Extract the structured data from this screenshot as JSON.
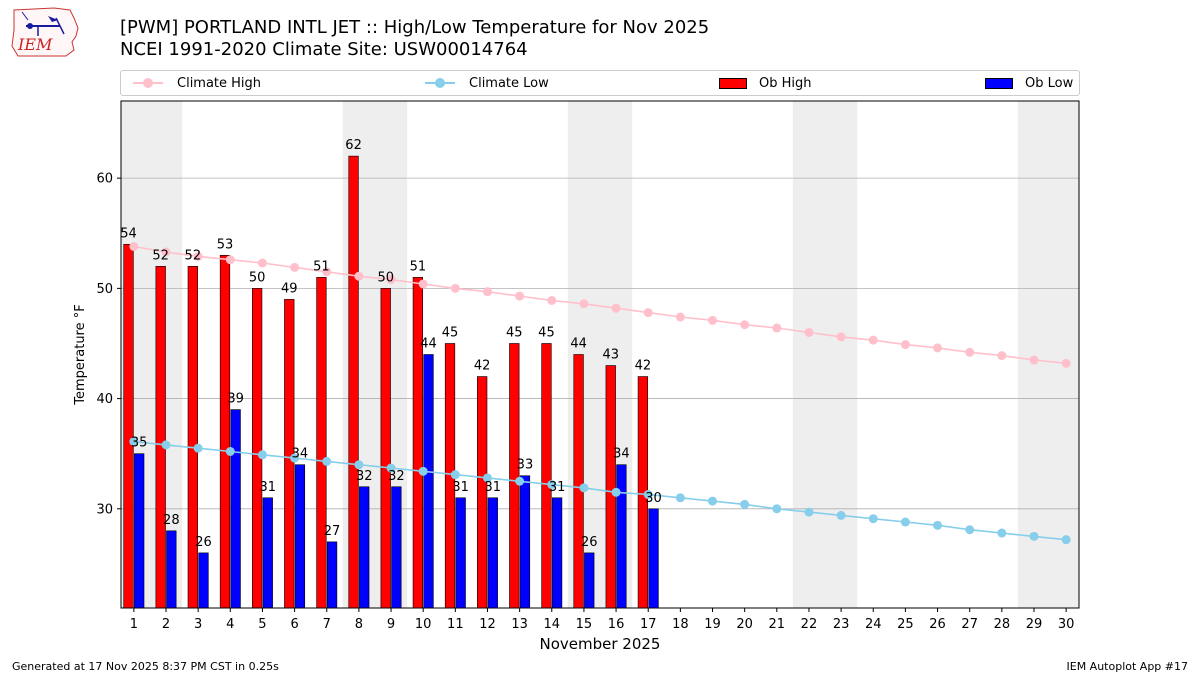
{
  "logo": {
    "text": "IEM"
  },
  "title": {
    "line1": "[PWM] PORTLAND INTL JET :: High/Low Temperature for Nov 2025",
    "line2": "NCEI 1991-2020 Climate Site: USW00014764"
  },
  "legend": {
    "climate_high": "Climate High",
    "climate_low": "Climate Low",
    "ob_high": "Ob High",
    "ob_low": "Ob Low"
  },
  "colors": {
    "climate_high": "#ffc0cb",
    "climate_low": "#87ceeb",
    "ob_high": "#ff0000",
    "ob_low": "#0000ff",
    "weekend_shade": "#eeeeee",
    "grid": "#b0b0b0"
  },
  "footer": {
    "left": "Generated at 17 Nov 2025 8:37 PM CST in 0.25s",
    "right": "IEM Autoplot App #17"
  },
  "chart_data": {
    "type": "bar",
    "xlabel": "November 2025",
    "ylabel": "Temperature °F",
    "ylim": [
      21,
      67
    ],
    "yticks": [
      30,
      40,
      50,
      60
    ],
    "days": [
      1,
      2,
      3,
      4,
      5,
      6,
      7,
      8,
      9,
      10,
      11,
      12,
      13,
      14,
      15,
      16,
      17,
      18,
      19,
      20,
      21,
      22,
      23,
      24,
      25,
      26,
      27,
      28,
      29,
      30
    ],
    "weekend_shading": [
      [
        1,
        2
      ],
      [
        8,
        9
      ],
      [
        15,
        16
      ],
      [
        22,
        23
      ],
      [
        29,
        30
      ]
    ],
    "grid": true,
    "legend_position": "top",
    "series": [
      {
        "name": "Ob High",
        "type": "bar",
        "values": [
          54,
          52,
          52,
          53,
          50,
          49,
          51,
          62,
          50,
          51,
          45,
          42,
          45,
          45,
          44,
          43,
          42
        ]
      },
      {
        "name": "Ob Low",
        "type": "bar",
        "values": [
          35,
          28,
          26,
          39,
          31,
          34,
          27,
          32,
          32,
          44,
          31,
          31,
          33,
          31,
          26,
          34,
          30
        ]
      },
      {
        "name": "Climate High",
        "type": "line",
        "values": [
          53.8,
          53.3,
          52.9,
          52.6,
          52.3,
          51.9,
          51.5,
          51.1,
          50.8,
          50.4,
          50.0,
          49.7,
          49.3,
          48.9,
          48.6,
          48.2,
          47.8,
          47.4,
          47.1,
          46.7,
          46.4,
          46.0,
          45.6,
          45.3,
          44.9,
          44.6,
          44.2,
          43.9,
          43.5,
          43.2
        ]
      },
      {
        "name": "Climate Low",
        "type": "line",
        "values": [
          36.1,
          35.8,
          35.5,
          35.2,
          34.9,
          34.6,
          34.3,
          34.0,
          33.7,
          33.4,
          33.1,
          32.8,
          32.5,
          32.2,
          31.9,
          31.5,
          31.3,
          31.0,
          30.7,
          30.4,
          30.0,
          29.7,
          29.4,
          29.1,
          28.8,
          28.5,
          28.1,
          27.8,
          27.5,
          27.2
        ]
      }
    ]
  }
}
